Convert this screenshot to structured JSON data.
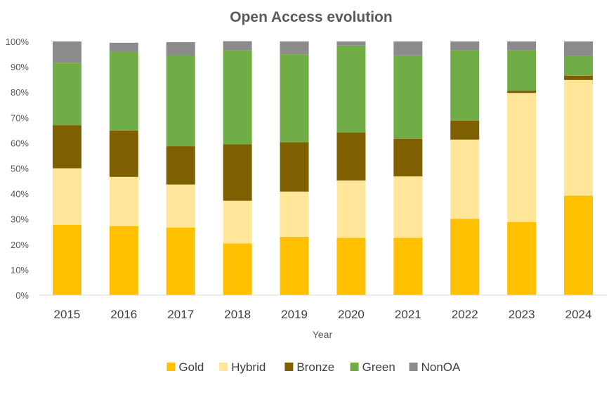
{
  "chart_data": {
    "type": "bar",
    "stacked": true,
    "title": "Open Access evolution",
    "xlabel": "Year",
    "ylabel": "",
    "ylim": [
      0,
      100
    ],
    "y_ticks": [
      "0%",
      "10%",
      "20%",
      "30%",
      "40%",
      "50%",
      "60%",
      "70%",
      "80%",
      "90%",
      "100%"
    ],
    "grid": false,
    "legend_position": "bottom",
    "categories": [
      "2015",
      "2016",
      "2017",
      "2018",
      "2019",
      "2020",
      "2021",
      "2022",
      "2023",
      "2024"
    ],
    "series": [
      {
        "name": "Gold",
        "color": "#FFC000",
        "values": [
          27.7,
          27.2,
          26.6,
          20.4,
          23.0,
          22.6,
          22.6,
          30.1,
          28.8,
          39.2
        ]
      },
      {
        "name": "Hybrid",
        "color": "#FFE699",
        "values": [
          22.3,
          19.4,
          17.0,
          16.8,
          17.8,
          22.6,
          24.2,
          31.2,
          50.9,
          45.6
        ]
      },
      {
        "name": "Bronze",
        "color": "#7F6000",
        "values": [
          17.0,
          18.3,
          15.1,
          22.3,
          19.5,
          18.9,
          14.7,
          7.4,
          1.0,
          1.7
        ]
      },
      {
        "name": "Green",
        "color": "#70AD47",
        "values": [
          24.5,
          31.1,
          35.9,
          37.0,
          34.5,
          34.3,
          33.0,
          27.8,
          15.8,
          7.8
        ]
      },
      {
        "name": "NonOA",
        "color": "#8B8B8B",
        "values": [
          8.5,
          3.5,
          5.1,
          3.6,
          5.2,
          1.6,
          5.5,
          3.5,
          3.5,
          5.7
        ]
      }
    ]
  }
}
